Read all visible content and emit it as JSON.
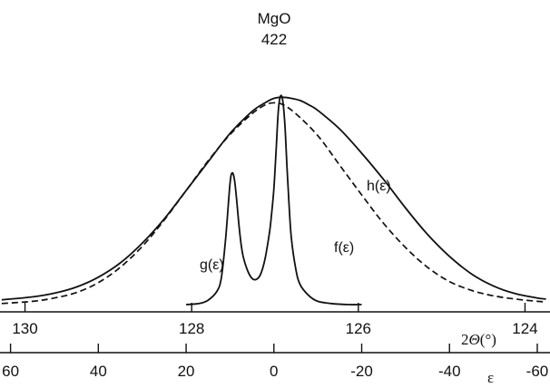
{
  "chart_data": {
    "type": "line",
    "title": "MgO",
    "subtitle": "422",
    "axes": [
      {
        "name": "2Θ",
        "label_prefix": "2",
        "label_symbol": "Θ",
        "label_unit": "(°)",
        "range": [
          130.3,
          123.7
        ],
        "ticks": [
          130,
          128,
          126,
          124
        ],
        "tick_labels": [
          "130",
          "128",
          "126",
          "124"
        ]
      },
      {
        "name": "ε",
        "label": "ε",
        "range": [
          62.4,
          -62.9
        ],
        "ticks": [
          60,
          40,
          20,
          0,
          -20,
          -40,
          -60
        ],
        "tick_labels": [
          "60",
          "40",
          "20",
          "0",
          "-20",
          "-40",
          "-60"
        ]
      }
    ],
    "series": [
      {
        "name": "h(ε)",
        "style": "solid",
        "color": "#111111",
        "x": [
          62,
          55,
          50,
          45,
          40,
          35,
          30,
          25,
          20,
          15,
          10,
          5,
          2,
          0,
          -2,
          -4,
          -6,
          -8,
          -10,
          -15,
          -20,
          -25,
          -30,
          -35,
          -40,
          -45,
          -50,
          -55,
          -60,
          -62
        ],
        "y": [
          0.022,
          0.035,
          0.052,
          0.08,
          0.125,
          0.19,
          0.28,
          0.39,
          0.52,
          0.65,
          0.78,
          0.88,
          0.92,
          0.94,
          0.945,
          0.94,
          0.93,
          0.91,
          0.885,
          0.8,
          0.69,
          0.57,
          0.44,
          0.32,
          0.22,
          0.14,
          0.085,
          0.05,
          0.03,
          0.025
        ]
      },
      {
        "name": "f(ε)",
        "style": "dashed",
        "color": "#111111",
        "x": [
          62,
          55,
          50,
          45,
          40,
          35,
          30,
          25,
          20,
          15,
          10,
          5,
          2,
          0,
          -2,
          -5,
          -10,
          -15,
          -20,
          -25,
          -30,
          -35,
          -40,
          -45,
          -50,
          -55,
          -60,
          -62
        ],
        "y": [
          0.005,
          0.015,
          0.03,
          0.055,
          0.1,
          0.17,
          0.265,
          0.385,
          0.52,
          0.655,
          0.775,
          0.87,
          0.91,
          0.92,
          0.912,
          0.87,
          0.77,
          0.635,
          0.5,
          0.37,
          0.26,
          0.17,
          0.105,
          0.065,
          0.04,
          0.025,
          0.015,
          0.012
        ]
      },
      {
        "name": "g(ε)",
        "style": "solid",
        "color": "#111111",
        "x": [
          20,
          17,
          15,
          13,
          12,
          11,
          10,
          9.5,
          9,
          8.5,
          8,
          7.5,
          7,
          6,
          5,
          4,
          3,
          2,
          1,
          0.5,
          0,
          -0.5,
          -1,
          -1.5,
          -2,
          -2.5,
          -3,
          -3.5,
          -4,
          -5,
          -6,
          -8,
          -10,
          -13,
          -17,
          -20
        ],
        "y": [
          0,
          0.005,
          0.02,
          0.06,
          0.12,
          0.3,
          0.55,
          0.6,
          0.57,
          0.48,
          0.37,
          0.28,
          0.22,
          0.155,
          0.12,
          0.115,
          0.14,
          0.21,
          0.33,
          0.42,
          0.53,
          0.7,
          0.88,
          0.95,
          0.93,
          0.82,
          0.62,
          0.44,
          0.3,
          0.16,
          0.09,
          0.04,
          0.015,
          0.005,
          0,
          0
        ]
      }
    ]
  }
}
